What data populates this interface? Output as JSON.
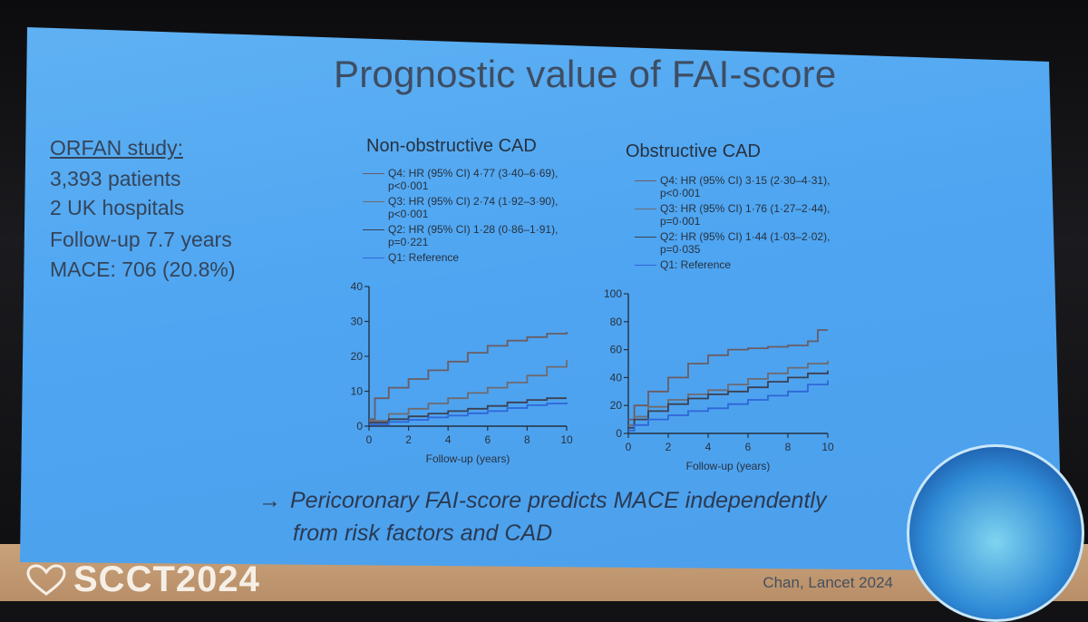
{
  "slide": {
    "title": "Prognostic value of FAI-score",
    "study": {
      "heading": "ORFAN study:",
      "patients": "3,393 patients",
      "hospitals": "2 UK hospitals",
      "followup": "Follow-up 7.7 years",
      "mace": "MACE: 706 (20.8%)"
    },
    "conclusion": {
      "arrow": "→",
      "line1": "Pericoronary FAI-score predicts MACE independently",
      "line2": "from risk factors and CAD"
    },
    "citation": "Chan, Lancet 2024",
    "logo_text": "SCCT2024"
  },
  "colors": {
    "slide_bg": "#4fa6f1",
    "q4": "#6b5c63",
    "q3": "#6f6a6e",
    "q2": "#3c4052",
    "q1": "#2f66d8"
  },
  "chart_data": [
    {
      "type": "line",
      "title": "Non-obstructive CAD",
      "xlabel": "Follow-up (years)",
      "ylabel": "",
      "xlim": [
        0,
        10
      ],
      "ylim": [
        0,
        40
      ],
      "xticks": [
        0,
        2,
        4,
        6,
        8,
        10
      ],
      "yticks": [
        0,
        10,
        20,
        30,
        40
      ],
      "legend_position": "top-left",
      "series": [
        {
          "name": "Q4: HR (95% CI) 4·77 (3·40–6·69), p<0·001",
          "legend_line1": "Q4: HR (95% CI) 4·77 (3·40–6·69),",
          "legend_line2": "p<0·001",
          "color": "#6b5c63",
          "x": [
            0,
            0.3,
            1,
            2,
            3,
            4,
            5,
            6,
            7,
            8,
            9,
            10
          ],
          "y": [
            2,
            8,
            11,
            13.5,
            16,
            18.5,
            21,
            23,
            24.5,
            25.5,
            26.5,
            27
          ]
        },
        {
          "name": "Q3: HR (95% CI) 2·74 (1·92–3·90), p<0·001",
          "legend_line1": "Q3: HR (95% CI) 2·74 (1·92–3·90),",
          "legend_line2": "p<0·001",
          "color": "#6f6a6e",
          "x": [
            0,
            1,
            2,
            3,
            4,
            5,
            6,
            7,
            8,
            9,
            10
          ],
          "y": [
            1.5,
            3.5,
            5,
            6.5,
            8,
            9.5,
            11,
            12.5,
            14.5,
            17,
            19
          ]
        },
        {
          "name": "Q2: HR (95% CI) 1·28 (0·86–1·91), p=0·221",
          "legend_line1": "Q2: HR (95% CI) 1·28 (0·86–1·91),",
          "legend_line2": "p=0·221",
          "color": "#3c4052",
          "x": [
            0,
            1,
            2,
            3,
            4,
            5,
            6,
            7,
            8,
            9,
            10
          ],
          "y": [
            1,
            2,
            2.8,
            3.6,
            4.3,
            5,
            5.8,
            6.8,
            7.5,
            8,
            8
          ]
        },
        {
          "name": "Q1: Reference",
          "legend_line1": "Q1: Reference",
          "legend_line2": "",
          "color": "#2f66d8",
          "x": [
            0,
            1,
            2,
            3,
            4,
            5,
            6,
            7,
            8,
            9,
            10
          ],
          "y": [
            0.5,
            1.2,
            1.8,
            2.5,
            3,
            3.7,
            4.3,
            5.2,
            6,
            6.5,
            6.8
          ]
        }
      ]
    },
    {
      "type": "line",
      "title": "Obstructive CAD",
      "xlabel": "Follow-up (years)",
      "ylabel": "",
      "xlim": [
        0,
        10
      ],
      "ylim": [
        0,
        100
      ],
      "xticks": [
        0,
        2,
        4,
        6,
        8,
        10
      ],
      "yticks": [
        0,
        20,
        40,
        60,
        80,
        100
      ],
      "legend_position": "top-left",
      "series": [
        {
          "name": "Q4: HR (95% CI) 3·15 (2·30–4·31), p<0·001",
          "legend_line1": "Q4: HR (95% CI) 3·15 (2·30–4·31),",
          "legend_line2": "p<0·001",
          "color": "#6b5c63",
          "x": [
            0,
            0.3,
            1,
            2,
            3,
            4,
            5,
            6,
            7,
            8,
            9,
            9.5,
            10
          ],
          "y": [
            10,
            20,
            30,
            40,
            50,
            56,
            60,
            61,
            62,
            63,
            66,
            74,
            74
          ]
        },
        {
          "name": "Q3: HR (95% CI) 1·76 (1·27–2·44), p=0·001",
          "legend_line1": "Q3: HR (95% CI) 1·76 (1·27–2·44),",
          "legend_line2": "p=0·001",
          "color": "#6f6a6e",
          "x": [
            0,
            0.3,
            1,
            2,
            3,
            4,
            5,
            6,
            7,
            8,
            9,
            10
          ],
          "y": [
            6,
            12,
            19,
            24,
            28,
            31,
            35,
            39,
            43,
            47,
            50,
            52
          ]
        },
        {
          "name": "Q2: HR (95% CI) 1·44 (1·03–2·02), p=0·035",
          "legend_line1": "Q2: HR (95% CI) 1·44 (1·03–2·02),",
          "legend_line2": "p=0·035",
          "color": "#3c4052",
          "x": [
            0,
            0.3,
            1,
            2,
            3,
            4,
            5,
            6,
            7,
            8,
            9,
            10
          ],
          "y": [
            4,
            10,
            16,
            21,
            25,
            28,
            30,
            33,
            37,
            40,
            43,
            45
          ]
        },
        {
          "name": "Q1: Reference",
          "legend_line1": "Q1: Reference",
          "legend_line2": "",
          "color": "#2f66d8",
          "x": [
            0,
            0.3,
            1,
            2,
            3,
            4,
            5,
            6,
            7,
            8,
            9,
            10
          ],
          "y": [
            2,
            6,
            10,
            13,
            16,
            18,
            21,
            24,
            27,
            30,
            35,
            38
          ]
        }
      ]
    }
  ]
}
